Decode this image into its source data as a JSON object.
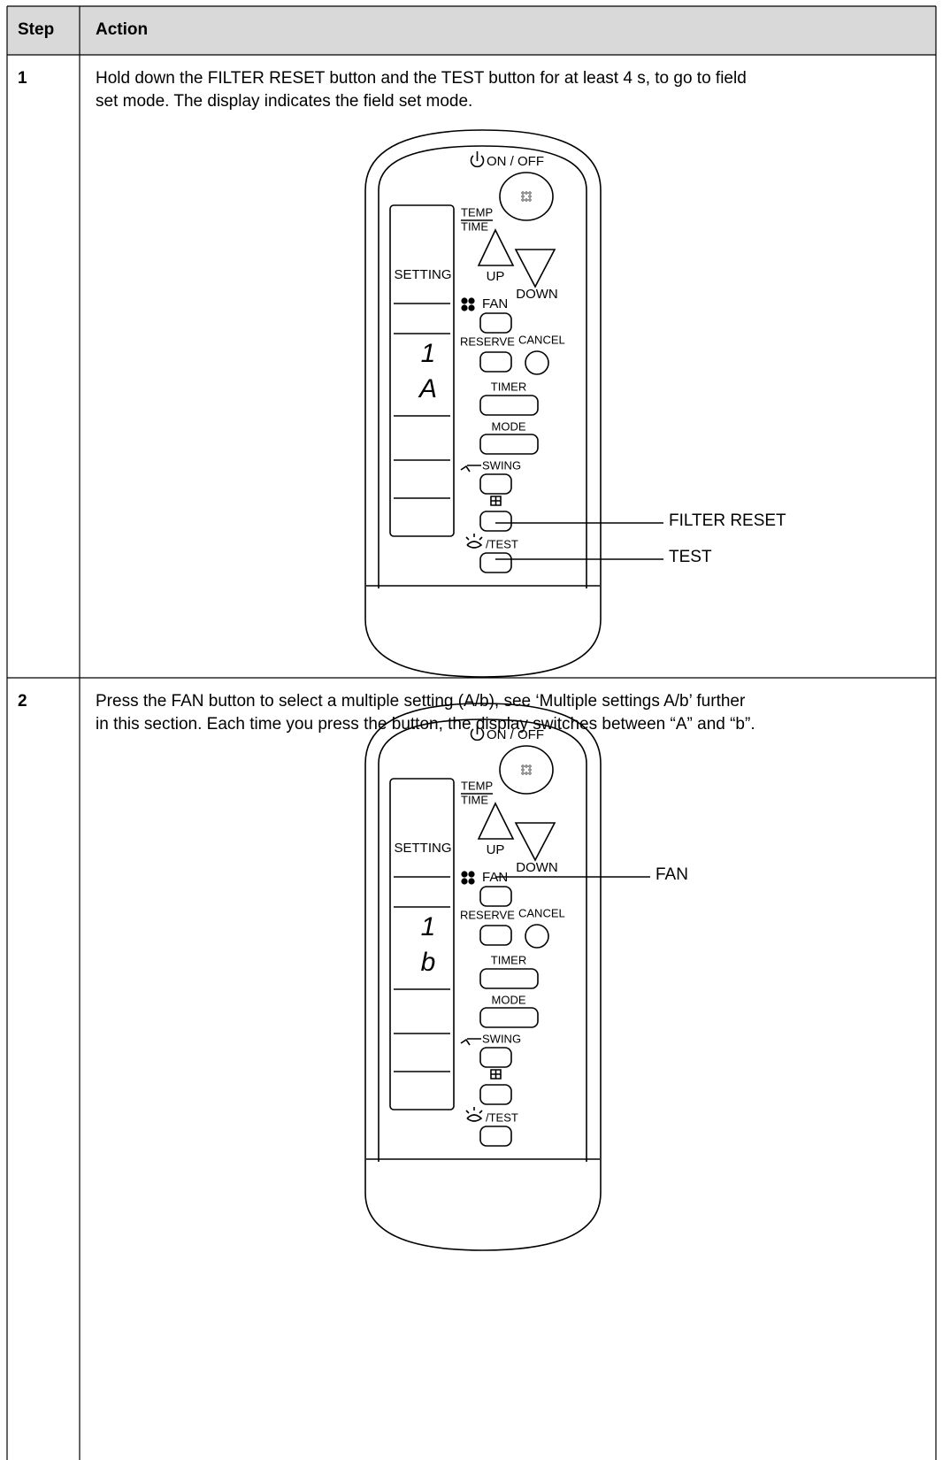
{
  "table": {
    "header": [
      "Step",
      "Action"
    ],
    "rows": [
      {
        "step": "1",
        "text": [
          "Hold down the FILTER RESET button and the TEST button for at least 4 s, to go to field",
          "set mode. The display indicates the field set mode."
        ],
        "display": [
          "1",
          "A"
        ],
        "callouts": [
          "FILTER RESET",
          "TEST"
        ]
      },
      {
        "step": "2",
        "text": [
          "Press the FAN button to select a multiple setting (A/b), see ‘Multiple settings A/b’ further",
          "in this section. Each time you press the button, the display switches between “A” and “b”."
        ],
        "display": [
          "1",
          "b"
        ],
        "callouts": [
          "FAN"
        ]
      }
    ]
  },
  "remote": {
    "on_off": "ON / OFF",
    "temp": "TEMP",
    "time": "TIME",
    "setting": "SETTING",
    "up": "UP",
    "down": "DOWN",
    "fan": "FAN",
    "reserve": "RESERVE",
    "cancel": "CANCEL",
    "timer": "TIMER",
    "mode": "MODE",
    "swing": "SWING",
    "test": "/TEST"
  }
}
